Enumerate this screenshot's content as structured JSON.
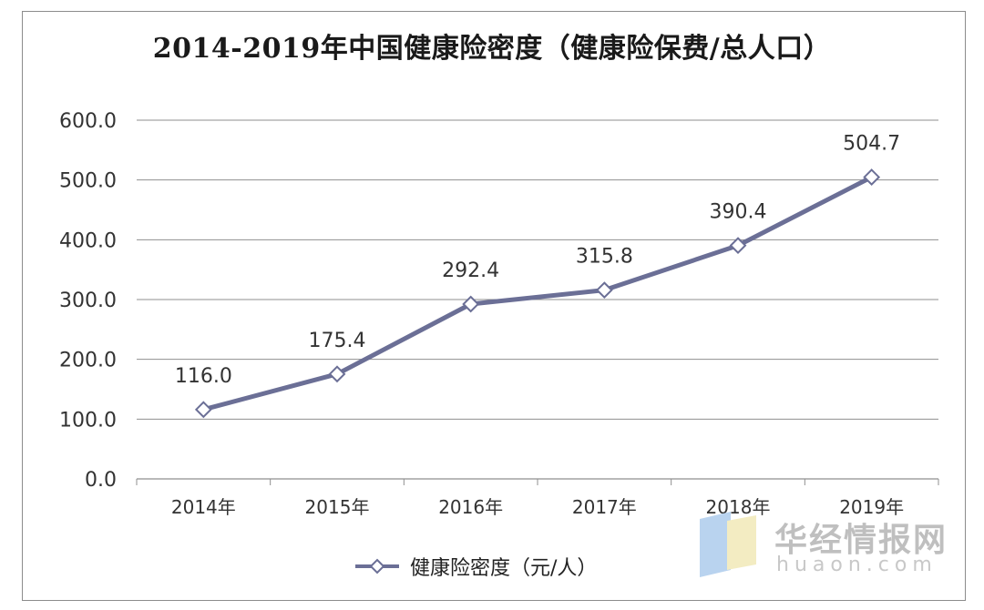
{
  "chart_data": {
    "type": "line",
    "title": "2014-2019年中国健康险密度（健康险保费/总人口）",
    "categories": [
      "2014年",
      "2015年",
      "2016年",
      "2017年",
      "2018年",
      "2019年"
    ],
    "series": [
      {
        "name": "健康险密度（元/人）",
        "values": [
          116.0,
          175.4,
          292.4,
          315.8,
          390.4,
          504.7
        ],
        "color": "#6b6f96"
      }
    ],
    "data_labels": [
      "116.0",
      "175.4",
      "292.4",
      "315.8",
      "390.4",
      "504.7"
    ],
    "y_ticks": [
      "0.0",
      "100.0",
      "200.0",
      "300.0",
      "400.0",
      "500.0",
      "600.0"
    ],
    "ylim": [
      0,
      600
    ],
    "grid": true,
    "legend": "bottom",
    "marker": "diamond"
  },
  "watermark": {
    "name": "华经情报网",
    "domain": "huaon.com"
  }
}
